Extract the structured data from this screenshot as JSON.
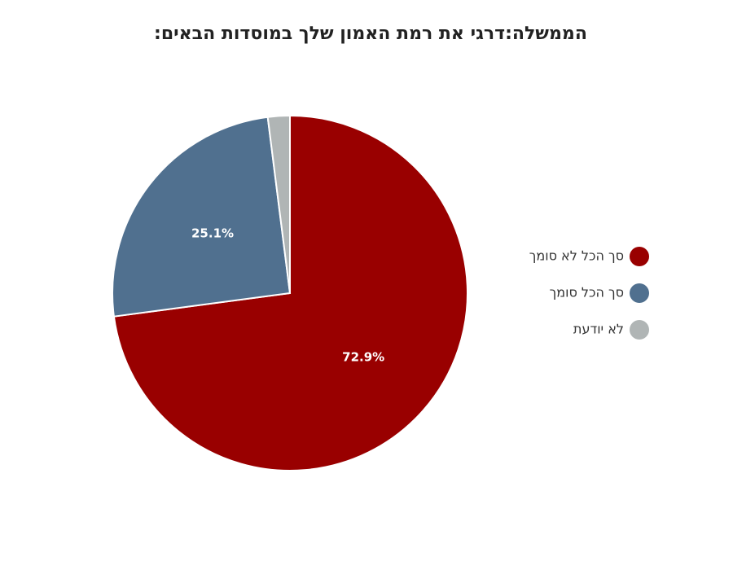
{
  "chart_data": {
    "type": "pie",
    "title": "הממשלה:דרגי את רמת האמון שלך במוסדות הבאים:",
    "categories": [
      "סך הכל לא סומך",
      "סך הכל סומך",
      "לא יודעת"
    ],
    "values": [
      72.9,
      25.1,
      2.0
    ],
    "value_labels": [
      "72.9%",
      "25.1%",
      null
    ],
    "colors": [
      "#990000",
      "#50708f",
      "#b0b5b5"
    ],
    "legend": "right"
  }
}
